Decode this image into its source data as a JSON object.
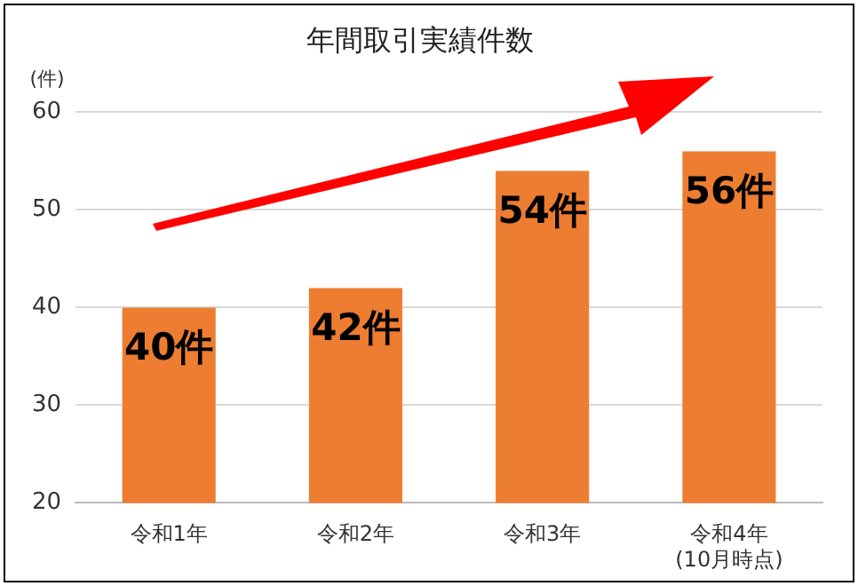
{
  "chart_data": {
    "type": "bar",
    "title": "年間取引実績件数",
    "ylabel": "(件)",
    "categories": [
      "令和1年",
      "令和2年",
      "令和3年",
      "令和4年\n(10月時点)"
    ],
    "values": [
      40,
      42,
      54,
      56
    ],
    "value_labels": [
      "40件",
      "42件",
      "54件",
      "56件"
    ],
    "color": "#ed7d31",
    "ylim": [
      20,
      60
    ],
    "yticks": [
      20,
      30,
      40,
      50,
      60
    ],
    "grid": "y",
    "legend": false
  }
}
